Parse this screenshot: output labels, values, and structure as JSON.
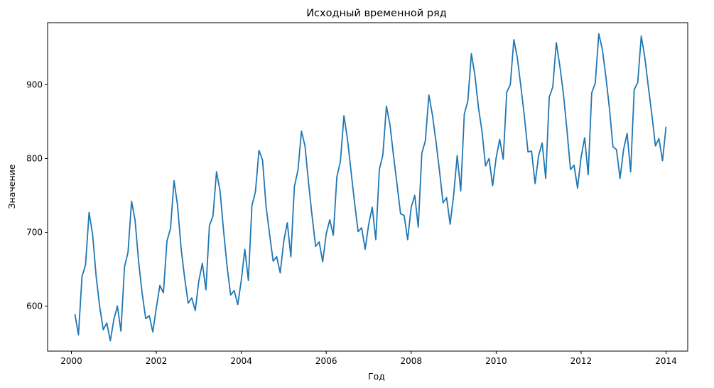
{
  "chart_data": {
    "type": "line",
    "title": "Исходный временной ряд",
    "xlabel": "Год",
    "ylabel": "Значение",
    "xlim": [
      1999.44,
      2014.51
    ],
    "ylim": [
      539,
      984
    ],
    "xticks": [
      2000,
      2002,
      2004,
      2006,
      2008,
      2010,
      2012,
      2014
    ],
    "xtick_labels": [
      "2000",
      "2002",
      "2004",
      "2006",
      "2008",
      "2010",
      "2012",
      "2014"
    ],
    "yticks": [
      600,
      700,
      800,
      900
    ],
    "ytick_labels": [
      "600",
      "700",
      "800",
      "900"
    ],
    "grid": false,
    "line_color": "#1f77b4",
    "series": [
      {
        "start_year": 2000,
        "start_month": 2,
        "values": [
          589,
          561,
          640,
          656,
          727,
          697,
          640,
          599,
          568,
          577,
          553,
          582,
          600,
          566,
          653,
          673,
          742,
          716,
          660,
          617,
          583,
          587,
          565,
          598,
          628,
          618,
          688,
          705,
          770,
          736,
          678,
          638,
          604,
          611,
          594,
          634,
          658,
          622,
          709,
          722,
          782,
          756,
          702,
          653,
          615,
          621,
          602,
          635,
          677,
          635,
          736,
          755,
          811,
          798,
          735,
          697,
          661,
          667,
          645,
          688,
          713,
          667,
          762,
          784,
          837,
          817,
          767,
          722,
          681,
          687,
          660,
          698,
          717,
          696,
          775,
          796,
          858,
          826,
          783,
          740,
          701,
          706,
          677,
          711,
          734,
          690,
          785,
          805,
          871,
          846,
          804,
          765,
          725,
          723,
          690,
          734,
          750,
          707,
          807,
          824,
          886,
          859,
          823,
          783,
          740,
          747,
          711,
          751,
          804,
          756,
          860,
          878,
          942,
          913,
          869,
          837,
          790,
          800,
          763,
          801,
          826,
          799,
          890,
          900,
          961,
          936,
          897,
          856,
          809,
          810,
          766,
          804,
          821,
          773,
          883,
          897,
          957,
          925,
          888,
          839,
          785,
          791,
          760,
          802,
          828,
          778,
          889,
          902,
          969,
          948,
          911,
          868,
          816,
          812,
          773,
          812,
          834,
          782,
          893,
          903,
          966,
          937,
          897,
          859,
          817,
          827,
          797,
          843
        ]
      }
    ]
  }
}
